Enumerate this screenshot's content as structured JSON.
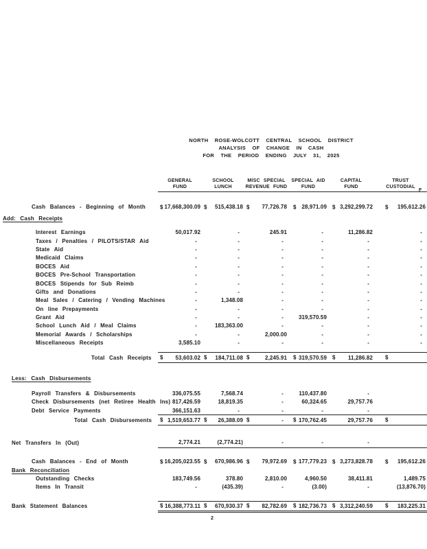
{
  "header": {
    "line1": "NORTH ROSE-WOLCOTT CENTRAL SCHOOL DISTRICT",
    "line2": "ANALYSIS OF CHANGE IN CASH",
    "line3": "FOR THE PERIOD ENDING JULY 31, 2025"
  },
  "page": {
    "number": "2"
  },
  "table": {
    "clipped_header": "F",
    "columns": [
      {
        "line1": "GENERAL",
        "line2": "FUND"
      },
      {
        "line1": "SCHOOL",
        "line2": "LUNCH"
      },
      {
        "line1": "MISC SPECIAL",
        "line2": "REVENUE FUND"
      },
      {
        "line1": "SPECIAL AID",
        "line2": "FUND"
      },
      {
        "line1": "CAPITAL",
        "line2": "FUND"
      },
      {
        "line1": "TRUST",
        "line2": "CUSTODIAL"
      }
    ],
    "rows": [
      {
        "type": "spacer",
        "h": 16
      },
      {
        "type": "data",
        "indent": 2,
        "label": "Cash Balances - Beginning of Month",
        "cells": [
          "$ 17,668,300.09",
          "$ 515,438.18",
          "$ 77,726.78",
          "$ 28,971.09",
          "$ 3,292,299.72",
          "$ 195,612.26"
        ]
      },
      {
        "type": "spacer",
        "h": 4
      },
      {
        "type": "section",
        "indent": 0,
        "label": "Add: Cash Receipts",
        "cells": null
      },
      {
        "type": "spacer",
        "h": 8
      },
      {
        "type": "data",
        "indent": 3,
        "label": "Interest Earnings",
        "cells": [
          "50,017.92",
          "-",
          "245.91",
          "-",
          "11,286.82",
          "-"
        ]
      },
      {
        "type": "data",
        "indent": 3,
        "label": "Taxes / Penalties / PILOTS/STAR Aid",
        "cells": [
          "-",
          "-",
          "-",
          "-",
          "-",
          "-"
        ]
      },
      {
        "type": "data",
        "indent": 3,
        "label": "State Aid",
        "cells": [
          "-",
          "-",
          "-",
          "-",
          "-",
          "-"
        ]
      },
      {
        "type": "data",
        "indent": 3,
        "label": "Medicaid Claims",
        "cells": [
          "-",
          "-",
          "-",
          "-",
          "-",
          "-"
        ]
      },
      {
        "type": "data",
        "indent": 3,
        "label": "BOCES Aid",
        "cells": [
          "-",
          "-",
          "-",
          "-",
          "-",
          "-"
        ]
      },
      {
        "type": "data",
        "indent": 3,
        "label": "BOCES Pre-School Transportation",
        "cells": [
          "-",
          "-",
          "-",
          "-",
          "-",
          "-"
        ]
      },
      {
        "type": "data",
        "indent": 3,
        "label": "BOCES Stipends for Sub Reimb",
        "cells": [
          "-",
          "-",
          "-",
          "-",
          "-",
          "-"
        ]
      },
      {
        "type": "data",
        "indent": 3,
        "label": "Gifts and Donations",
        "cells": [
          "-",
          "-",
          "-",
          "-",
          "-",
          "-"
        ]
      },
      {
        "type": "data",
        "indent": 3,
        "label": "Meal Sales / Catering / Vending Machines",
        "cells": [
          "-",
          "1,348.08",
          "-",
          "-",
          "-",
          "-"
        ]
      },
      {
        "type": "data",
        "indent": 3,
        "label": "On line Prepayments",
        "cells": [
          "-",
          "-",
          "-",
          "-",
          "-",
          "-"
        ]
      },
      {
        "type": "data",
        "indent": 3,
        "label": "Grant Aid",
        "cells": [
          "-",
          "-",
          "-",
          "319,570.59",
          "-",
          "-"
        ]
      },
      {
        "type": "data",
        "indent": 3,
        "label": "School Lunch Aid / Meal Claims",
        "cells": [
          "-",
          "183,363.00",
          "-",
          "-",
          "-",
          "-"
        ]
      },
      {
        "type": "data",
        "indent": 3,
        "label": "Memorial Awards / Scholarships",
        "cells": [
          "-",
          "-",
          "2,000.00",
          "-",
          "-",
          "-"
        ]
      },
      {
        "type": "data",
        "indent": 3,
        "label": "Miscellaneous Receipts",
        "cells": [
          "3,585.10",
          "-",
          "-",
          "-",
          "-",
          "-"
        ]
      },
      {
        "type": "spacer",
        "h": 8
      },
      {
        "type": "total",
        "indent": 5,
        "label": "Total Cash Receipts",
        "rule": "tb",
        "cells": [
          "$ 53,603.02",
          "$ 184,711.08",
          "$ 2,245.91",
          "$ 319,570.59",
          "$ 11,286.82",
          "$"
        ]
      },
      {
        "type": "spacer",
        "h": 16
      },
      {
        "type": "section",
        "indent": 1,
        "label": "Less: Cash Disbursements",
        "cells": null
      },
      {
        "type": "spacer",
        "h": 10
      },
      {
        "type": "data",
        "indent": 2,
        "label": "Payroll Transfers & Disbursements",
        "cells": [
          "336,075.55",
          "7,568.74",
          "-",
          "110,437.80",
          "-",
          ""
        ]
      },
      {
        "type": "data",
        "indent": 2,
        "label": "Check Disbursements (net Retiree Health Ins)",
        "cells": [
          "817,426.59",
          "18,819.35",
          "-",
          "60,324.65",
          "29,757.76",
          ""
        ]
      },
      {
        "type": "data",
        "indent": 2,
        "label": "Debt Service Payments",
        "cells": [
          "366,151.63",
          "-",
          "-",
          "-",
          "-",
          ""
        ]
      },
      {
        "type": "total",
        "indent": 4,
        "label": "Total Cash Disbursements",
        "rule": "tb",
        "cells": [
          "$ 1,519,653.77",
          "$ 26,388.09",
          "$ -",
          "$ 170,762.45",
          "29,757.76",
          "$"
        ]
      },
      {
        "type": "spacer",
        "h": 18
      },
      {
        "type": "total",
        "indent": 1,
        "label": "Net Transfers In (Out)",
        "rule": "b",
        "cells": [
          "2,774.21",
          "(2,774.21)",
          "-",
          "-",
          "-",
          ""
        ]
      },
      {
        "type": "spacer",
        "h": 14
      },
      {
        "type": "data",
        "indent": 2,
        "label": "Cash Balances - End of Month",
        "cells": [
          "$ 16,205,023.55",
          "$ 670,986.96",
          "$ 79,972.69",
          "$ 177,779.23",
          "$ 3,273,828.78",
          "$ 195,612.26"
        ]
      },
      {
        "type": "section",
        "indent": 1,
        "label": "Bank Reconciliation",
        "cells": null
      },
      {
        "type": "data",
        "indent": 3,
        "label": "Outstanding Checks",
        "cells": [
          "183,749.56",
          "378.80",
          "2,810.00",
          "4,960.50",
          "38,411.81",
          "1,489.75"
        ]
      },
      {
        "type": "data",
        "indent": 3,
        "label": "Items In Transit",
        "cells": [
          "-",
          "(435.39)",
          "-",
          "(3.00)",
          "-",
          "(13,876.70)"
        ]
      },
      {
        "type": "spacer",
        "h": 14
      },
      {
        "type": "total",
        "indent": 1,
        "label": "Bank Statement Balances",
        "rule": "stmt",
        "cells": [
          "$ 16,388,773.11",
          "$ 670,930.37",
          "$ 82,782.69",
          "$ 182,736.73",
          "$ 3,312,240.59",
          "$ 183,225.31"
        ]
      }
    ]
  }
}
